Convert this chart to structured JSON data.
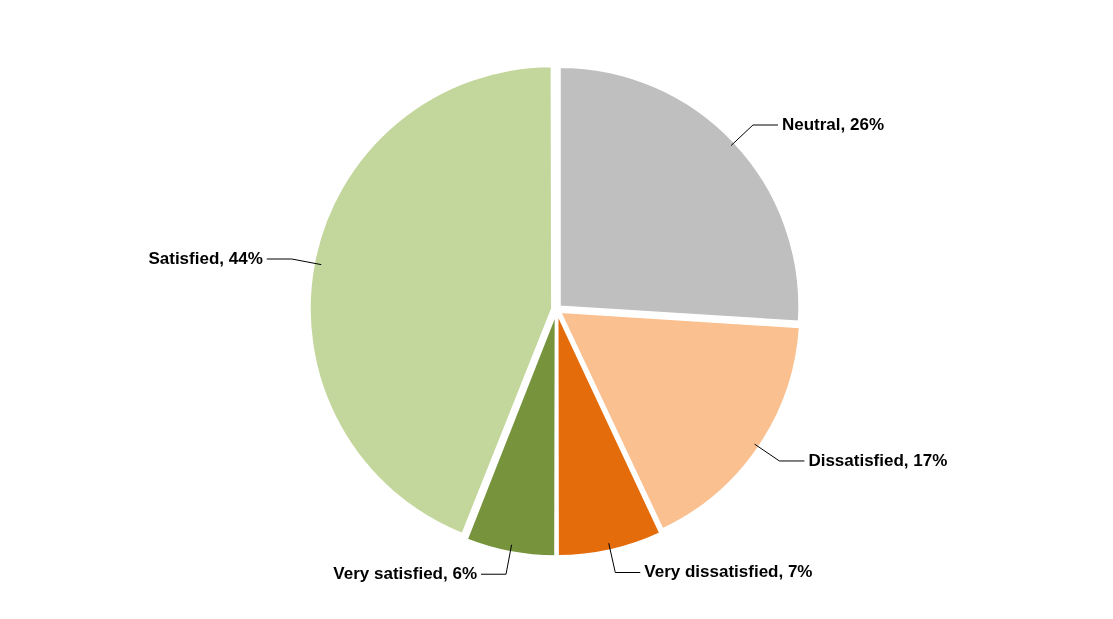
{
  "chart_data": {
    "type": "pie",
    "categories": [
      "Neutral",
      "Dissatisfied",
      "Very dissatisfied",
      "Very satisfied",
      "Satisfied"
    ],
    "values": [
      26,
      17,
      7,
      6,
      44
    ],
    "colors": [
      "#bfbfbf",
      "#fac090",
      "#e46c0a",
      "#77933c",
      "#c3d69b"
    ],
    "value_labels": [
      "26%",
      "17%",
      "7%",
      "6%",
      "44%"
    ]
  }
}
